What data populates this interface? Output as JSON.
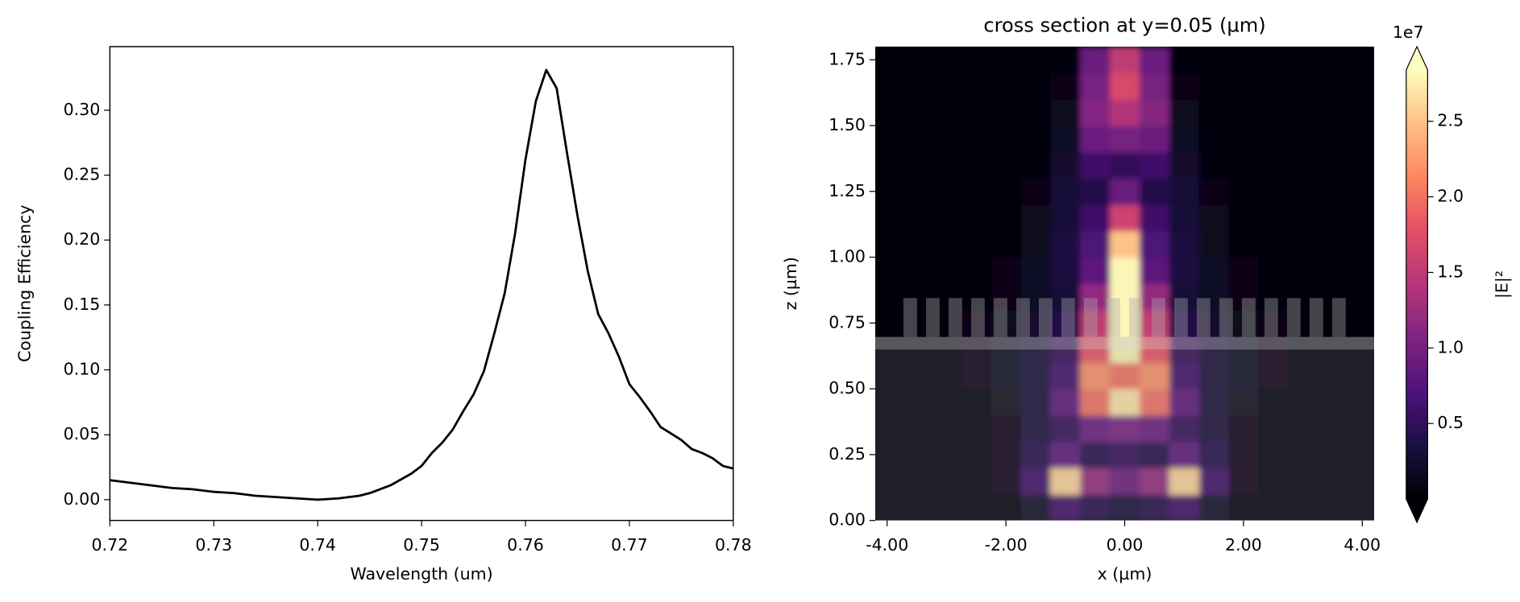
{
  "chart_data": [
    {
      "type": "line",
      "xlabel": "Wavelength (um)",
      "ylabel": "Coupling Efficiency",
      "x": [
        0.72,
        0.722,
        0.724,
        0.726,
        0.728,
        0.73,
        0.732,
        0.734,
        0.736,
        0.738,
        0.74,
        0.742,
        0.744,
        0.745,
        0.747,
        0.749,
        0.75,
        0.751,
        0.752,
        0.753,
        0.754,
        0.755,
        0.756,
        0.757,
        0.758,
        0.759,
        0.76,
        0.761,
        0.762,
        0.763,
        0.764,
        0.765,
        0.766,
        0.767,
        0.768,
        0.769,
        0.77,
        0.771,
        0.772,
        0.773,
        0.774,
        0.775,
        0.776,
        0.777,
        0.778,
        0.779,
        0.78
      ],
      "series": [
        {
          "color": "#000000",
          "values": [
            0.015,
            0.013,
            0.011,
            0.009,
            0.008,
            0.006,
            0.005,
            0.003,
            0.002,
            0.001,
            0.0,
            0.001,
            0.003,
            0.005,
            0.011,
            0.02,
            0.026,
            0.036,
            0.044,
            0.054,
            0.068,
            0.081,
            0.099,
            0.128,
            0.159,
            0.205,
            0.262,
            0.307,
            0.331,
            0.317,
            0.267,
            0.219,
            0.176,
            0.143,
            0.128,
            0.11,
            0.089,
            0.079,
            0.068,
            0.056,
            0.051,
            0.046,
            0.039,
            0.036,
            0.032,
            0.026,
            0.024
          ]
        }
      ],
      "xlim": [
        0.72,
        0.78
      ],
      "xticks": [
        0.72,
        0.73,
        0.74,
        0.75,
        0.76,
        0.77,
        0.78
      ],
      "ylim": [
        -0.016,
        0.349
      ],
      "yticks": [
        {
          "value": 0,
          "label": "0.00"
        },
        0.05,
        {
          "value": 0.1,
          "label": "0.10"
        },
        0.15,
        {
          "value": 0.2,
          "label": "0.20"
        },
        0.25,
        {
          "value": 0.3,
          "label": "0.30"
        }
      ]
    },
    {
      "type": "heatmap",
      "title": "cross section at y=0.05 (µm)",
      "xlabel": "x (µm)",
      "ylabel": "z (µm)",
      "colormap": "magma",
      "x": [
        -4,
        -3.5,
        -3,
        -2.5,
        -2,
        -1.5,
        -1,
        -0.5,
        0,
        0.5,
        1,
        1.5,
        2,
        2.5,
        3,
        3.5,
        4
      ],
      "y": [
        0.05,
        0.15,
        0.25,
        0.35,
        0.45,
        0.55,
        0.65,
        0.75,
        0.85,
        0.95,
        1.05,
        1.15,
        1.25,
        1.35,
        1.45,
        1.55,
        1.65,
        1.75
      ],
      "z": [
        [
          0.02,
          0.02,
          0.02,
          0.02,
          0.05,
          0.2,
          0.6,
          0.4,
          0.3,
          0.4,
          0.6,
          0.2,
          0.05,
          0.02,
          0.02,
          0.02,
          0.02
        ],
        [
          0.02,
          0.02,
          0.02,
          0.02,
          0.1,
          0.6,
          2.6,
          1.2,
          0.9,
          1.2,
          2.6,
          0.6,
          0.1,
          0.02,
          0.02,
          0.02,
          0.02
        ],
        [
          0.02,
          0.02,
          0.02,
          0.02,
          0.1,
          0.4,
          0.8,
          0.4,
          0.5,
          0.4,
          0.8,
          0.4,
          0.1,
          0.02,
          0.02,
          0.02,
          0.02
        ],
        [
          0.02,
          0.02,
          0.02,
          0.02,
          0.1,
          0.3,
          0.5,
          0.9,
          1.0,
          0.9,
          0.5,
          0.3,
          0.1,
          0.02,
          0.02,
          0.02,
          0.02
        ],
        [
          0.02,
          0.02,
          0.02,
          0.02,
          0.15,
          0.3,
          0.8,
          2.0,
          2.7,
          2.0,
          0.8,
          0.3,
          0.15,
          0.02,
          0.02,
          0.02,
          0.02
        ],
        [
          0.02,
          0.02,
          0.02,
          0.1,
          0.2,
          0.3,
          0.6,
          2.2,
          2.0,
          2.2,
          0.6,
          0.3,
          0.2,
          0.1,
          0.02,
          0.02,
          0.02
        ],
        [
          0.02,
          0.02,
          0.05,
          0.1,
          0.2,
          0.3,
          0.5,
          1.8,
          2.8,
          1.8,
          0.5,
          0.3,
          0.2,
          0.1,
          0.05,
          0.02,
          0.02
        ],
        [
          0.02,
          0.02,
          0.05,
          0.1,
          0.15,
          0.25,
          0.4,
          1.5,
          2.8,
          1.5,
          0.4,
          0.25,
          0.15,
          0.1,
          0.05,
          0.02,
          0.02
        ],
        [
          0.02,
          0.02,
          0.02,
          0.05,
          0.1,
          0.2,
          0.3,
          1.2,
          2.8,
          1.2,
          0.3,
          0.2,
          0.1,
          0.05,
          0.02,
          0.02,
          0.02
        ],
        [
          0.02,
          0.02,
          0.02,
          0.02,
          0.1,
          0.2,
          0.35,
          0.8,
          2.8,
          0.8,
          0.35,
          0.2,
          0.1,
          0.02,
          0.02,
          0.02,
          0.02
        ],
        [
          0.02,
          0.02,
          0.02,
          0.02,
          0.05,
          0.15,
          0.35,
          0.7,
          2.5,
          0.7,
          0.35,
          0.15,
          0.05,
          0.02,
          0.02,
          0.02,
          0.02
        ],
        [
          0.02,
          0.02,
          0.02,
          0.02,
          0.02,
          0.15,
          0.3,
          0.6,
          1.6,
          0.6,
          0.3,
          0.15,
          0.02,
          0.02,
          0.02,
          0.02,
          0.02
        ],
        [
          0.02,
          0.02,
          0.02,
          0.02,
          0.02,
          0.1,
          0.3,
          0.4,
          0.9,
          0.4,
          0.3,
          0.1,
          0.02,
          0.02,
          0.02,
          0.02,
          0.02
        ],
        [
          0.02,
          0.02,
          0.02,
          0.02,
          0.02,
          0.05,
          0.25,
          0.6,
          0.5,
          0.6,
          0.25,
          0.05,
          0.02,
          0.02,
          0.02,
          0.02,
          0.02
        ],
        [
          0.02,
          0.02,
          0.02,
          0.02,
          0.02,
          0.02,
          0.2,
          0.9,
          1.0,
          0.9,
          0.2,
          0.02,
          0.02,
          0.02,
          0.02,
          0.02,
          0.02
        ],
        [
          0.02,
          0.02,
          0.02,
          0.02,
          0.02,
          0.02,
          0.15,
          1.1,
          1.4,
          1.1,
          0.15,
          0.02,
          0.02,
          0.02,
          0.02,
          0.02,
          0.02
        ],
        [
          0.02,
          0.02,
          0.02,
          0.02,
          0.02,
          0.02,
          0.1,
          1.0,
          1.7,
          1.0,
          0.1,
          0.02,
          0.02,
          0.02,
          0.02,
          0.02,
          0.02
        ],
        [
          0.02,
          0.02,
          0.02,
          0.02,
          0.02,
          0.02,
          0.05,
          0.9,
          1.5,
          0.9,
          0.05,
          0.02,
          0.02,
          0.02,
          0.02,
          0.02,
          0.02
        ]
      ],
      "xlim": [
        -4.2,
        4.2
      ],
      "xticks": [
        {
          "value": -4,
          "label": "-4.00"
        },
        {
          "value": -2,
          "label": "-2.00"
        },
        {
          "value": 0,
          "label": "0.00"
        },
        {
          "value": 2,
          "label": "2.00"
        },
        {
          "value": 4,
          "label": "4.00"
        }
      ],
      "ylim": [
        0,
        1.8
      ],
      "yticks": [
        {
          "value": 0,
          "label": "0.00"
        },
        0.25,
        {
          "value": 0.5,
          "label": "0.50"
        },
        0.75,
        {
          "value": 1,
          "label": "1.00"
        },
        1.25,
        {
          "value": 1.5,
          "label": "1.50"
        },
        1.75
      ],
      "colorbar": {
        "label": "|E|²",
        "offset_label": "1e7",
        "lim": [
          0,
          2.84
        ],
        "ticks": [
          0.5,
          {
            "value": 1,
            "label": "1.0"
          },
          1.5,
          {
            "value": 2,
            "label": "2.0"
          },
          2.5
        ]
      }
    }
  ]
}
